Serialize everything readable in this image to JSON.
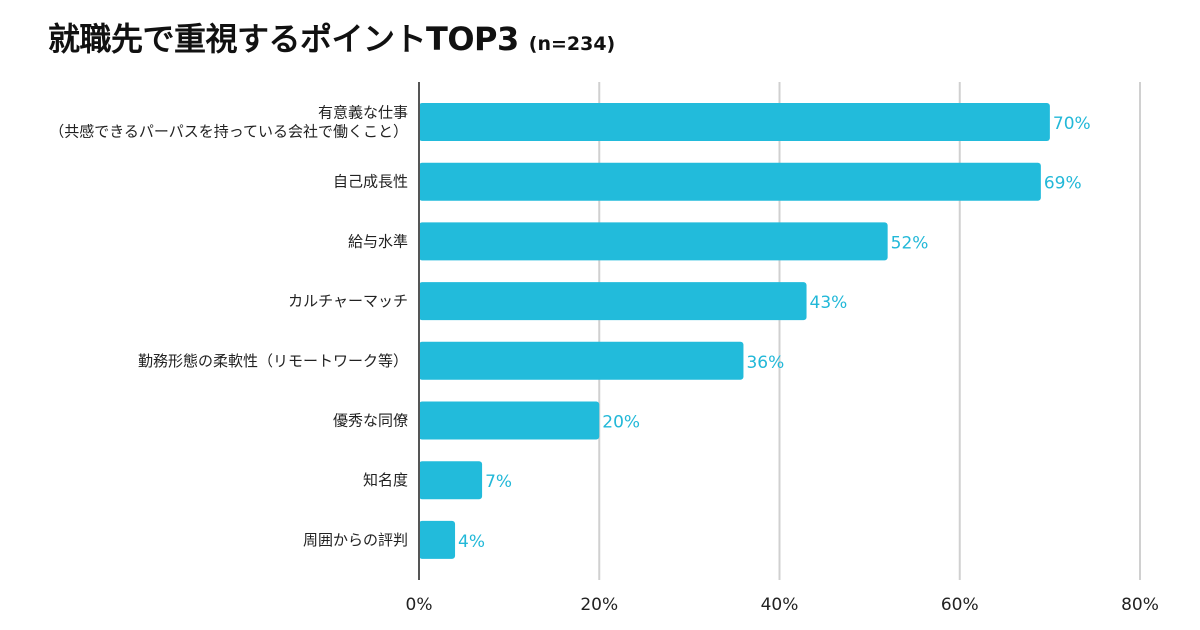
{
  "chart_data": {
    "type": "bar",
    "orientation": "horizontal",
    "title": "就職先で重視するポイントTOP3",
    "subtitle": "(n=234)",
    "categories": [
      [
        "有意義な仕事",
        "（共感できるパーパスを持っている会社で働くこと）"
      ],
      [
        "自己成長性"
      ],
      [
        "給与水準"
      ],
      [
        "カルチャーマッチ"
      ],
      [
        "勤務形態の柔軟性（リモートワーク等）"
      ],
      [
        "優秀な同僚"
      ],
      [
        "知名度"
      ],
      [
        "周囲からの評判"
      ]
    ],
    "values": [
      70,
      69,
      52,
      43,
      36,
      20,
      7,
      4
    ],
    "value_labels": [
      "70%",
      "69%",
      "52%",
      "43%",
      "36%",
      "20%",
      "7%",
      "4%"
    ],
    "xlim": [
      0,
      80
    ],
    "x_ticks": [
      0,
      20,
      40,
      60,
      80
    ],
    "x_tick_labels": [
      "0%",
      "20%",
      "40%",
      "60%",
      "80%"
    ],
    "grid": true,
    "xlabel": "",
    "ylabel": "",
    "bar_color": "#22bbdb",
    "label_color": "#22b8d8"
  }
}
